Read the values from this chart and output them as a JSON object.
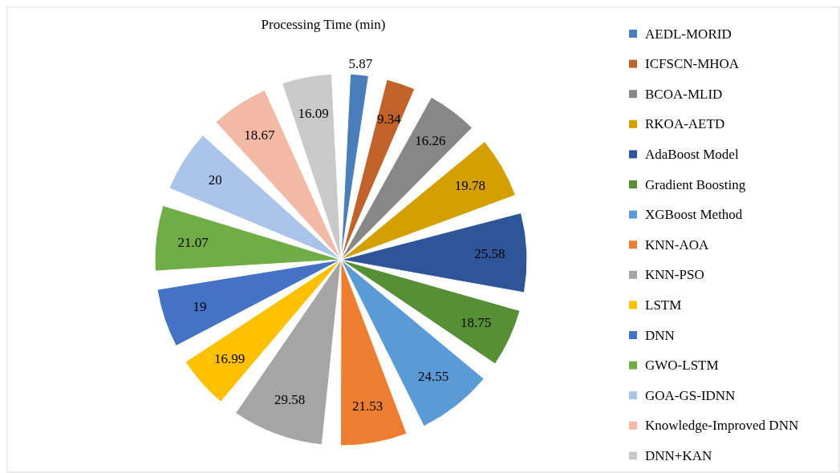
{
  "chart_data": {
    "type": "pie",
    "title": "Processing Time (min)",
    "categories": [
      "AEDL-MORID",
      "ICFSCN-MHOA",
      "BCOA-MLID",
      "RKOA-AETD",
      "AdaBoost Model",
      "Gradient Boosting",
      "XGBoost Method",
      "KNN-AOA",
      "KNN-PSO",
      "LSTM",
      "DNN",
      "GWO-LSTM",
      "GOA-GS-IDNN",
      "Knowledge-Improved DNN",
      "DNN+KAN"
    ],
    "values": [
      5.87,
      9.34,
      16.26,
      19.78,
      25.58,
      18.75,
      24.55,
      21.53,
      29.58,
      16.99,
      19,
      21.07,
      20,
      18.67,
      16.09
    ],
    "colors": [
      "#4a7ebb",
      "#c0622a",
      "#878787",
      "#d4a000",
      "#2e5597",
      "#568f36",
      "#5b9bd5",
      "#ed7d31",
      "#a5a5a5",
      "#ffc000",
      "#4472c4",
      "#70ad47",
      "#a9c4e8",
      "#f4b9a4",
      "#c9c9c9"
    ],
    "data_labels": true,
    "legend": "right"
  }
}
